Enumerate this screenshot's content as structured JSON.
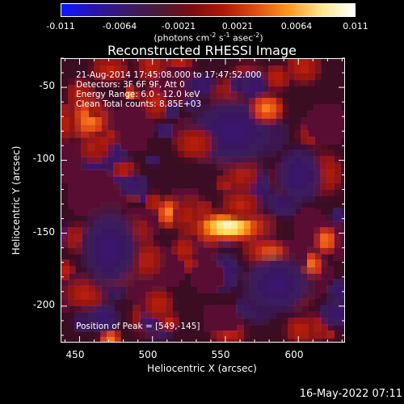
{
  "colorbar": {
    "ticks": [
      "-0.011",
      "-0.0064",
      "-0.0021",
      "0.0021",
      "0.0064",
      "0.011"
    ],
    "units_prefix": "(photons cm",
    "units_exp1": "-2",
    "units_mid": " s",
    "units_exp2": "-1",
    "units_mid2": " asec",
    "units_exp3": "-2",
    "units_suffix": ")",
    "colors": [
      "#0a1aff",
      "#2a12b0",
      "#3a1a68",
      "#4a1a38",
      "#7a0c10",
      "#b01808",
      "#e05010",
      "#ff9a20",
      "#ffe890",
      "#ffffff"
    ]
  },
  "plot": {
    "title": "Reconstructed RHESSI Image",
    "info": {
      "time_range": "21-Aug-2014 17:45:08.000 to 17:47:52.000",
      "detectors": "Detectors: 3F 6F 9F, Att 0",
      "energy_range": "Energy Range: 6.0 - 12.0 keV",
      "clean_counts": "Clean    Total counts: 8.85E+03"
    },
    "peak": "Position of Peak = [549,-145]",
    "xlabel": "Heliocentric X (arcsec)",
    "ylabel": "Heliocentric Y (arcsec)",
    "x_ticks": [
      "450",
      "500",
      "550",
      "600"
    ],
    "y_ticks": [
      "-50",
      "-100",
      "-150",
      "-200"
    ],
    "xlim": [
      437,
      632
    ],
    "ylim": [
      -225,
      -30
    ],
    "colors": {
      "background": "#3a0a22",
      "dim": "#5a1030",
      "purple": "#3a1a60",
      "red": "#a01810",
      "orange": "#e05a10",
      "yellow": "#ffd040",
      "white": "#ffffe0"
    }
  },
  "chart_data": {
    "type": "heatmap",
    "title": "Reconstructed RHESSI Image",
    "xlabel": "Heliocentric X (arcsec)",
    "ylabel": "Heliocentric Y (arcsec)",
    "xlim": [
      437,
      632
    ],
    "ylim": [
      -225,
      -30
    ],
    "x_ticks": [
      450,
      500,
      550,
      600
    ],
    "y_ticks": [
      -50,
      -100,
      -150,
      -200
    ],
    "colorbar_range": [
      -0.011,
      0.011
    ],
    "peak": [
      549,
      -145
    ],
    "sources": [
      {
        "x": 549,
        "y": -145,
        "intensity": 1.0
      },
      {
        "x": 578,
        "y": -64,
        "intensity": 0.55
      },
      {
        "x": 528,
        "y": -88,
        "intensity": 0.45
      },
      {
        "x": 560,
        "y": -130,
        "intensity": 0.35
      }
    ]
  },
  "timestamp": "16-May-2022 07:11"
}
